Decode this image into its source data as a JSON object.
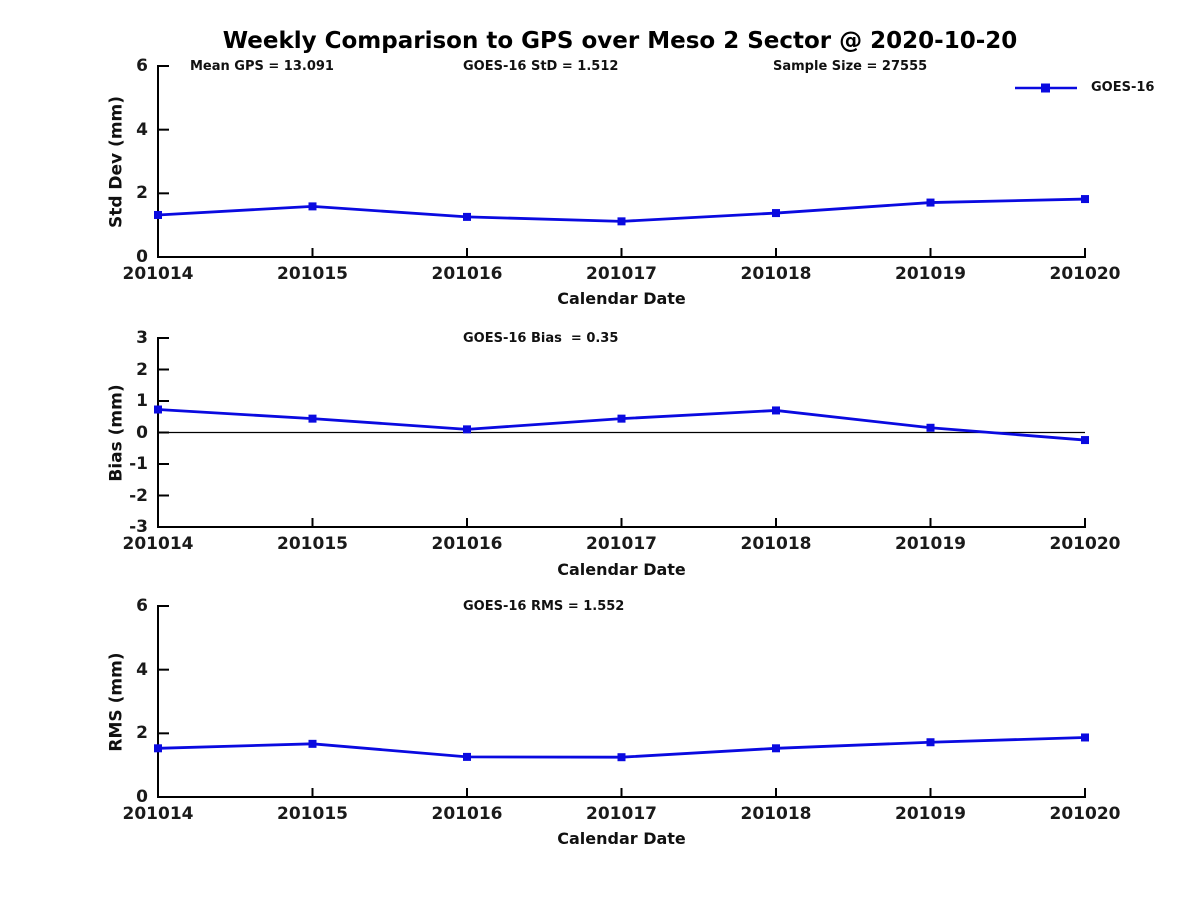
{
  "figure": {
    "title": "Weekly Comparison to GPS over Meso 2 Sector @ 2020-10-20"
  },
  "annotations": {
    "mean_gps": "Mean GPS = 13.091",
    "goes16_std": "GOES-16 StD = 1.512",
    "sample_size": "Sample Size = 27555"
  },
  "legend": {
    "label": "GOES-16",
    "marker": "square",
    "color": "#0a0ae0"
  },
  "colors": {
    "series_blue": "#0a0ae0",
    "axis": "#000000",
    "background": "#ffffff"
  },
  "chart_data": [
    {
      "type": "line",
      "title": "",
      "ylabel": "Std Dev (mm)",
      "xlabel": "Calendar Date",
      "categories": [
        "201014",
        "201015",
        "201016",
        "201017",
        "201018",
        "201019",
        "201020"
      ],
      "series": [
        {
          "name": "GOES-16",
          "values": [
            1.32,
            1.59,
            1.26,
            1.12,
            1.38,
            1.71,
            1.82
          ]
        }
      ],
      "ylim": [
        0,
        6
      ],
      "yticks": [
        0,
        2,
        4,
        6
      ],
      "grid": false,
      "zero_line": false,
      "legend_position": "top-right",
      "marker": "square"
    },
    {
      "type": "line",
      "title": "GOES-16 Bias  = 0.35",
      "ylabel": "Bias (mm)",
      "xlabel": "Calendar Date",
      "categories": [
        "201014",
        "201015",
        "201016",
        "201017",
        "201018",
        "201019",
        "201020"
      ],
      "series": [
        {
          "name": "GOES-16",
          "values": [
            0.73,
            0.44,
            0.1,
            0.44,
            0.7,
            0.15,
            -0.24
          ]
        }
      ],
      "ylim": [
        -3,
        3
      ],
      "yticks": [
        3,
        2,
        1,
        0,
        -1,
        -2,
        -3
      ],
      "grid": false,
      "zero_line": true,
      "marker": "square"
    },
    {
      "type": "line",
      "title": "GOES-16 RMS = 1.552",
      "ylabel": "RMS (mm)",
      "xlabel": "Calendar Date",
      "categories": [
        "201014",
        "201015",
        "201016",
        "201017",
        "201018",
        "201019",
        "201020"
      ],
      "series": [
        {
          "name": "GOES-16",
          "values": [
            1.53,
            1.67,
            1.26,
            1.25,
            1.53,
            1.72,
            1.87
          ]
        }
      ],
      "ylim": [
        0,
        6
      ],
      "yticks": [
        0,
        2,
        4,
        6
      ],
      "grid": false,
      "zero_line": false,
      "marker": "square"
    }
  ]
}
